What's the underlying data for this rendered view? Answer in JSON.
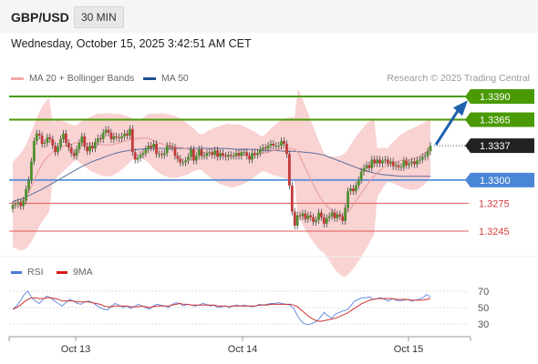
{
  "header": {
    "symbol": "GBP/USD",
    "timeframe": "30 MIN"
  },
  "datetime": "Wednesday, October 15, 2025 3:42:51 AM CET",
  "legend": {
    "ma20": "MA 20 + Bollinger Bands",
    "ma50": "MA 50"
  },
  "credit": "Research © 2025 Trading Central",
  "rsi_legend": {
    "rsi": "RSI",
    "ma": "9MA"
  },
  "colors": {
    "bullish_arrow": "#1f5fae",
    "resistance": "#4a9a06",
    "current": "#222222",
    "pivot": "#4a86d6",
    "support": "#e05656",
    "candle": "#4f8f2f",
    "candle_down": "#c23a3a",
    "bands": "#f7c3c3",
    "ma50": "#5a6e9c",
    "rsi": "#6a8ee0",
    "rsi_ma": "#cc3333"
  },
  "chart_data": {
    "type": "candlestick",
    "instrument": "GBP/USD",
    "interval": "30 MIN",
    "x_ticks": [
      "Oct 13",
      "Oct 14",
      "Oct 15"
    ],
    "price_levels": [
      {
        "value": 1.339,
        "label": "1.3390",
        "role": "resistance"
      },
      {
        "value": 1.3365,
        "label": "1.3365",
        "role": "resistance"
      },
      {
        "value": 1.3337,
        "label": "1.3337",
        "role": "current"
      },
      {
        "value": 1.33,
        "label": "1.3300",
        "role": "pivot"
      },
      {
        "value": 1.3275,
        "label": "1.3275",
        "role": "support"
      },
      {
        "value": 1.3245,
        "label": "1.3245",
        "role": "support"
      }
    ],
    "price_close": [
      1.3273,
      1.3274,
      1.3276,
      1.3272,
      1.3278,
      1.329,
      1.33,
      1.332,
      1.3342,
      1.335,
      1.3348,
      1.3339,
      1.334,
      1.3346,
      1.3344,
      1.3337,
      1.333,
      1.3336,
      1.3344,
      1.335,
      1.334,
      1.3335,
      1.3329,
      1.3326,
      1.3333,
      1.334,
      1.3347,
      1.3336,
      1.3331,
      1.3337,
      1.3334,
      1.3341,
      1.3345,
      1.3344,
      1.3351,
      1.3354,
      1.3351,
      1.3344,
      1.3347,
      1.3346,
      1.3345,
      1.3347,
      1.335,
      1.3348,
      1.3355,
      1.333,
      1.3322,
      1.3324,
      1.3327,
      1.3329,
      1.3333,
      1.3337,
      1.3335,
      1.3339,
      1.3328,
      1.3328,
      1.3327,
      1.3329,
      1.3337,
      1.3336,
      1.3335,
      1.3326,
      1.3323,
      1.3319,
      1.3319,
      1.3321,
      1.3325,
      1.3333,
      1.3321,
      1.3326,
      1.3333,
      1.3326,
      1.3326,
      1.3329,
      1.333,
      1.3327,
      1.3332,
      1.3325,
      1.3329,
      1.3326,
      1.3325,
      1.3327,
      1.3326,
      1.3326,
      1.3329,
      1.3326,
      1.333,
      1.333,
      1.3326,
      1.3322,
      1.3329,
      1.3327,
      1.3329,
      1.3333,
      1.3335,
      1.3334,
      1.3337,
      1.3339,
      1.3337,
      1.3337,
      1.3337,
      1.3342,
      1.3339,
      1.3328,
      1.3294,
      1.3266,
      1.3251,
      1.3262,
      1.3261,
      1.3264,
      1.3258,
      1.3262,
      1.326,
      1.3255,
      1.3257,
      1.3265,
      1.326,
      1.3253,
      1.3259,
      1.3261,
      1.3265,
      1.3259,
      1.3263,
      1.3261,
      1.3256,
      1.327,
      1.3288,
      1.3291,
      1.3288,
      1.3294,
      1.33,
      1.3309,
      1.3313,
      1.3316,
      1.3313,
      1.3322,
      1.3318,
      1.3322,
      1.3318,
      1.3321,
      1.3322,
      1.3318,
      1.332,
      1.3315,
      1.3316,
      1.3314,
      1.3314,
      1.3321,
      1.3316,
      1.3318,
      1.332,
      1.3317,
      1.3321,
      1.3322,
      1.3325,
      1.3326,
      1.3331,
      1.3337
    ],
    "ma20": [
      1.3273,
      1.3275,
      1.3276,
      1.3278,
      1.3282,
      1.3288,
      1.3296,
      1.3304,
      1.3312,
      1.3318,
      1.3323,
      1.3327,
      1.333,
      1.3333,
      1.3335,
      1.3336,
      1.3337,
      1.3338,
      1.3339,
      1.334,
      1.334,
      1.334,
      1.334,
      1.3339,
      1.3339,
      1.3339,
      1.3339,
      1.3338,
      1.3338,
      1.3338,
      1.3338,
      1.3339,
      1.334,
      1.3341,
      1.3342,
      1.3343,
      1.3344,
      1.3344,
      1.3345,
      1.3345,
      1.3345,
      1.3345,
      1.3343,
      1.3341,
      1.334,
      1.3339,
      1.3338,
      1.3337,
      1.3336,
      1.3336,
      1.3335,
      1.3335,
      1.3334,
      1.3333,
      1.3333,
      1.3332,
      1.3331,
      1.333,
      1.3329,
      1.3329,
      1.3328,
      1.3328,
      1.3327,
      1.3327,
      1.3327,
      1.3327,
      1.3326,
      1.3326,
      1.3327,
      1.3327,
      1.3327,
      1.3327,
      1.3327,
      1.3328,
      1.3328,
      1.3328,
      1.3329,
      1.333,
      1.3331,
      1.3332,
      1.3333,
      1.3334,
      1.3334,
      1.3334,
      1.3334,
      1.3333,
      1.333,
      1.3323,
      1.3315,
      1.3308,
      1.33,
      1.3293,
      1.3286,
      1.328,
      1.3275,
      1.3271,
      1.3268,
      1.3265,
      1.3263,
      1.3262,
      1.3262,
      1.3265,
      1.327,
      1.3275,
      1.328,
      1.3285,
      1.329,
      1.3295,
      1.33,
      1.3304,
      1.3308,
      1.3311,
      1.3314,
      1.3316,
      1.3318,
      1.3319,
      1.332,
      1.3321,
      1.3321,
      1.3322,
      1.3322,
      1.3323,
      1.3324,
      1.3326,
      1.3328,
      1.3331,
      1.3334
    ],
    "ma50": [
      1.3277,
      1.328,
      1.3285,
      1.329,
      1.3296,
      1.3302,
      1.3308,
      1.3314,
      1.3319,
      1.3323,
      1.3327,
      1.333,
      1.3332,
      1.3333,
      1.3334,
      1.3334,
      1.3334,
      1.3334,
      1.3334,
      1.3334,
      1.3334,
      1.3334,
      1.3334,
      1.3333,
      1.3333,
      1.3333,
      1.3332,
      1.3332,
      1.3331,
      1.3331,
      1.333,
      1.3329,
      1.3327,
      1.3323,
      1.3319,
      1.3315,
      1.3311,
      1.3308,
      1.3306,
      1.3305,
      1.3304,
      1.3304,
      1.3304,
      1.3304
    ],
    "bollinger_upper_approx": 1.3375,
    "bollinger_lower_approx": 1.324,
    "rsi_ticks": [
      70,
      50,
      30
    ],
    "rsi": [
      48,
      52,
      58,
      66,
      70,
      62,
      58,
      55,
      60,
      64,
      62,
      58,
      55,
      52,
      56,
      60,
      58,
      55,
      54,
      57,
      58,
      56,
      53,
      50,
      48,
      47,
      52,
      55,
      53,
      50,
      52,
      49,
      51,
      54,
      52,
      50,
      48,
      52,
      54,
      53,
      52,
      50,
      54,
      56,
      55,
      52,
      54,
      53,
      52,
      53,
      55,
      54,
      52,
      53,
      50,
      51,
      52,
      50,
      52,
      53,
      52,
      53,
      52,
      51,
      52,
      54,
      53,
      54,
      55,
      55,
      56,
      55,
      54,
      53,
      49,
      40,
      33,
      30,
      29,
      31,
      33,
      38,
      44,
      40,
      37,
      42,
      44,
      46,
      47,
      52,
      58,
      60,
      62,
      62,
      63,
      60,
      61,
      62,
      60,
      58,
      61,
      59,
      58,
      59,
      60,
      58,
      59,
      60,
      62,
      66,
      63
    ],
    "rsi_ma": [
      48,
      50,
      53,
      57,
      60,
      62,
      62,
      61,
      61,
      62,
      62,
      61,
      60,
      58,
      58,
      58,
      58,
      57,
      57,
      57,
      57,
      56,
      55,
      54,
      52,
      51,
      51,
      52,
      52,
      52,
      52,
      51,
      51,
      51,
      52,
      51,
      50,
      51,
      52,
      52,
      52,
      52,
      53,
      54,
      55,
      54,
      54,
      53,
      53,
      53,
      53,
      53,
      53,
      53,
      52,
      52,
      52,
      51,
      52,
      52,
      52,
      52,
      52,
      52,
      52,
      53,
      53,
      53,
      54,
      54,
      54,
      54,
      54,
      54,
      53,
      51,
      47,
      43,
      39,
      36,
      34,
      33,
      34,
      35,
      36,
      37,
      39,
      41,
      43,
      46,
      49,
      52,
      55,
      57,
      59,
      60,
      61,
      61,
      61,
      61,
      61,
      60,
      60,
      60,
      60,
      59,
      59,
      59,
      59,
      60,
      61
    ]
  }
}
